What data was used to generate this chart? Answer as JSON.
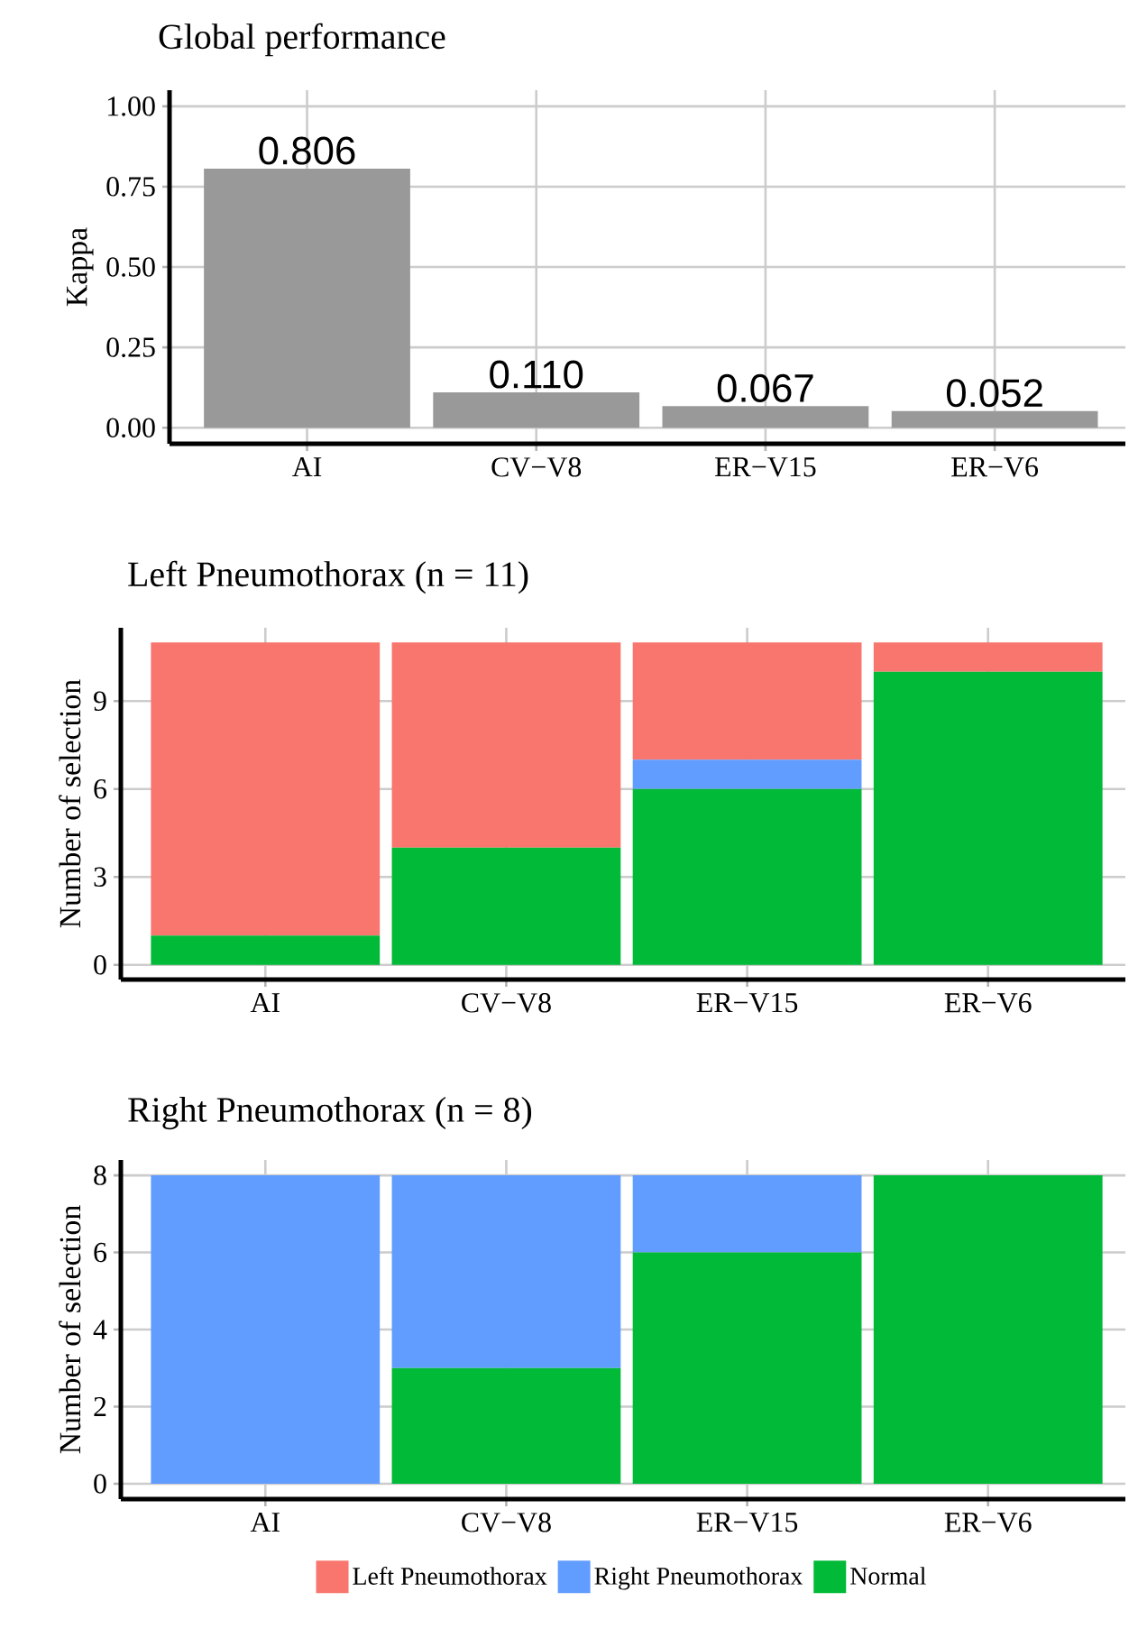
{
  "chart_data": [
    {
      "type": "bar",
      "title": "Global performance",
      "ylabel": "Kappa",
      "categories": [
        "AI",
        "CV−V8",
        "ER−V15",
        "ER−V6"
      ],
      "values": [
        0.806,
        0.11,
        0.067,
        0.052
      ],
      "value_labels": [
        "0.806",
        "0.110",
        "0.067",
        "0.052"
      ],
      "color": "#999999",
      "ylim": [
        -0.05,
        1.05
      ],
      "yticks": [
        {
          "value": 0,
          "label": "0.00"
        },
        {
          "value": 0.25,
          "label": "0.25"
        },
        {
          "value": 0.5,
          "label": "0.50"
        },
        {
          "value": 0.75,
          "label": "0.75"
        },
        {
          "value": 1,
          "label": "1.00"
        }
      ],
      "grid": true
    },
    {
      "type": "bar",
      "title": "Left Pneumothorax (n = 11)",
      "ylabel": "Number of selection",
      "categories": [
        "AI",
        "CV−V8",
        "ER−V15",
        "ER−V6"
      ],
      "stacked": true,
      "series": [
        {
          "color": "#00ba38",
          "values": [
            1,
            4,
            6,
            10
          ]
        },
        {
          "color": "#619cff",
          "values": [
            0,
            0,
            1,
            0
          ]
        },
        {
          "color": "#f8766d",
          "values": [
            10,
            7,
            4,
            1
          ]
        }
      ],
      "ylim": [
        -0.5,
        11.5
      ],
      "yticks": [
        0,
        3,
        6,
        9
      ],
      "grid": true
    },
    {
      "type": "bar",
      "title": "Right Pneumothorax (n = 8)",
      "ylabel": "Number of selection",
      "categories": [
        "AI",
        "CV−V8",
        "ER−V15",
        "ER−V6"
      ],
      "stacked": true,
      "series": [
        {
          "name": "Normal",
          "color": "#00ba38",
          "values": [
            0,
            3,
            6,
            8
          ]
        },
        {
          "name": "Right Pneumothorax",
          "color": "#619cff",
          "values": [
            8,
            5,
            2,
            0
          ]
        },
        {
          "name": "Left Pneumothorax",
          "color": "#f8766d",
          "values": [
            0,
            0,
            0,
            0
          ]
        }
      ],
      "ylim": [
        -0.4,
        8.4
      ],
      "yticks": [
        0,
        2,
        4,
        6,
        8
      ],
      "grid": true,
      "legend": "bottom"
    }
  ]
}
